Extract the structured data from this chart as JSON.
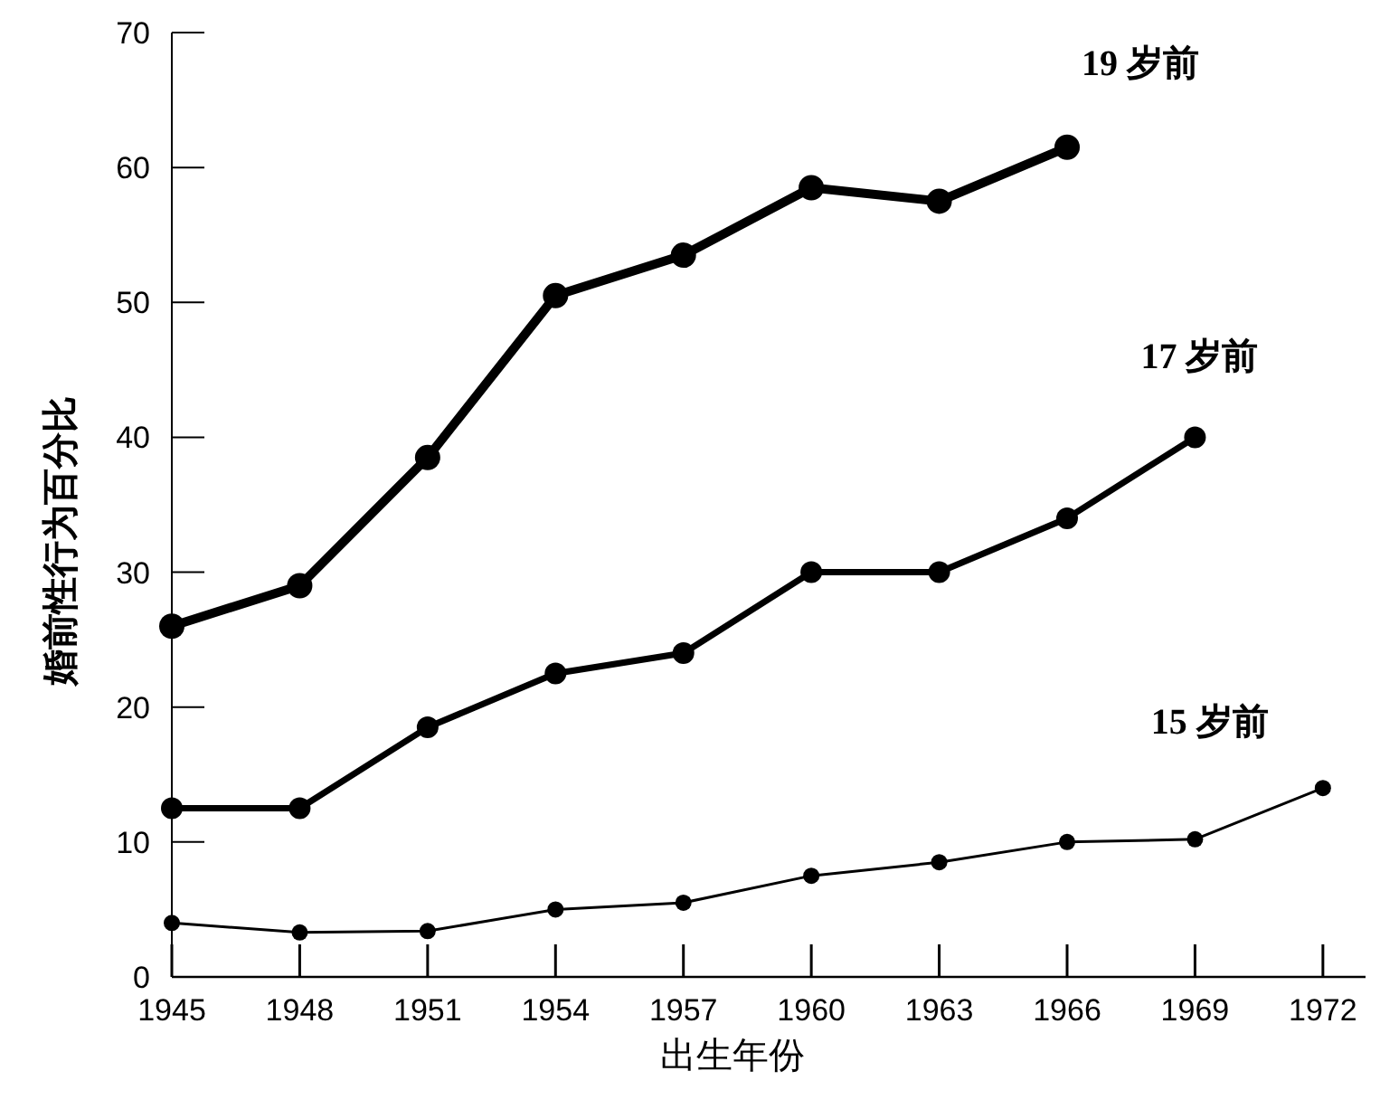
{
  "chart_data": {
    "type": "line",
    "xlabel": "出生年份",
    "ylabel": "婚前性行为百分比",
    "x": [
      1945,
      1948,
      1951,
      1954,
      1957,
      1960,
      1963,
      1966,
      1969,
      1972
    ],
    "xlim": [
      1945,
      1973
    ],
    "xticks": [
      1945,
      1948,
      1951,
      1954,
      1957,
      1960,
      1963,
      1966,
      1969,
      1972
    ],
    "ylim": [
      0,
      70
    ],
    "yticks": [
      0,
      10,
      20,
      30,
      40,
      50,
      60,
      70
    ],
    "grid": false,
    "legend": false,
    "marker": "circle",
    "line_style": "solid",
    "series": [
      {
        "name": "19 岁前",
        "color": "#000000",
        "values": [
          26,
          29,
          38.5,
          50.5,
          53.5,
          58.5,
          57.5,
          61.5,
          null,
          null
        ]
      },
      {
        "name": "17 岁前",
        "color": "#000000",
        "values": [
          12.5,
          12.5,
          18.5,
          22.5,
          24,
          30,
          30,
          34,
          40,
          null
        ]
      },
      {
        "name": "15 岁前",
        "color": "#000000",
        "values": [
          4,
          3.3,
          3.4,
          5,
          5.5,
          7.5,
          8.5,
          10,
          10.2,
          14
        ]
      }
    ]
  }
}
